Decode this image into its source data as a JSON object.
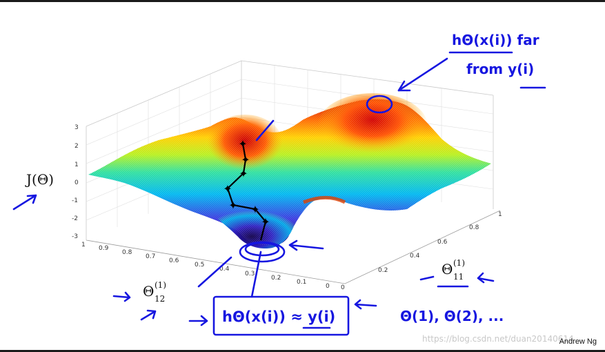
{
  "slide": {
    "credit": "Andrew Ng",
    "watermark": "https://blog.csdn.net/duan20140614"
  },
  "axes": {
    "z_ticks": [
      "3",
      "2",
      "1",
      "0",
      "-1",
      "-2",
      "-3"
    ],
    "left_ticks": [
      "1",
      "0.9",
      "0.8",
      "0.7",
      "0.6",
      "0.5",
      "0.4",
      "0.3",
      "0.2",
      "0.1",
      "0"
    ],
    "right_ticks": [
      "0",
      "0.2",
      "0.4",
      "0.6",
      "0.8",
      "1"
    ]
  },
  "labels": {
    "j_theta": "J(Θ)",
    "theta12": "Θ",
    "theta12_sup": "(1)",
    "theta12_sub": "12",
    "theta11": "Θ",
    "theta11_sup": "(1)",
    "theta11_sub": "11"
  },
  "annotations": {
    "top_numerator": "hΘ(x(i)) far",
    "top_denominator": "from y(i)",
    "bottom_box": "hΘ(x(i)) ≈ y(i)",
    "params_list": "Θ(1), Θ(2), ..."
  },
  "colors": {
    "ink": "#1616e0",
    "surface_low": "#2a0a8a",
    "surface_high": "#d40000"
  }
}
